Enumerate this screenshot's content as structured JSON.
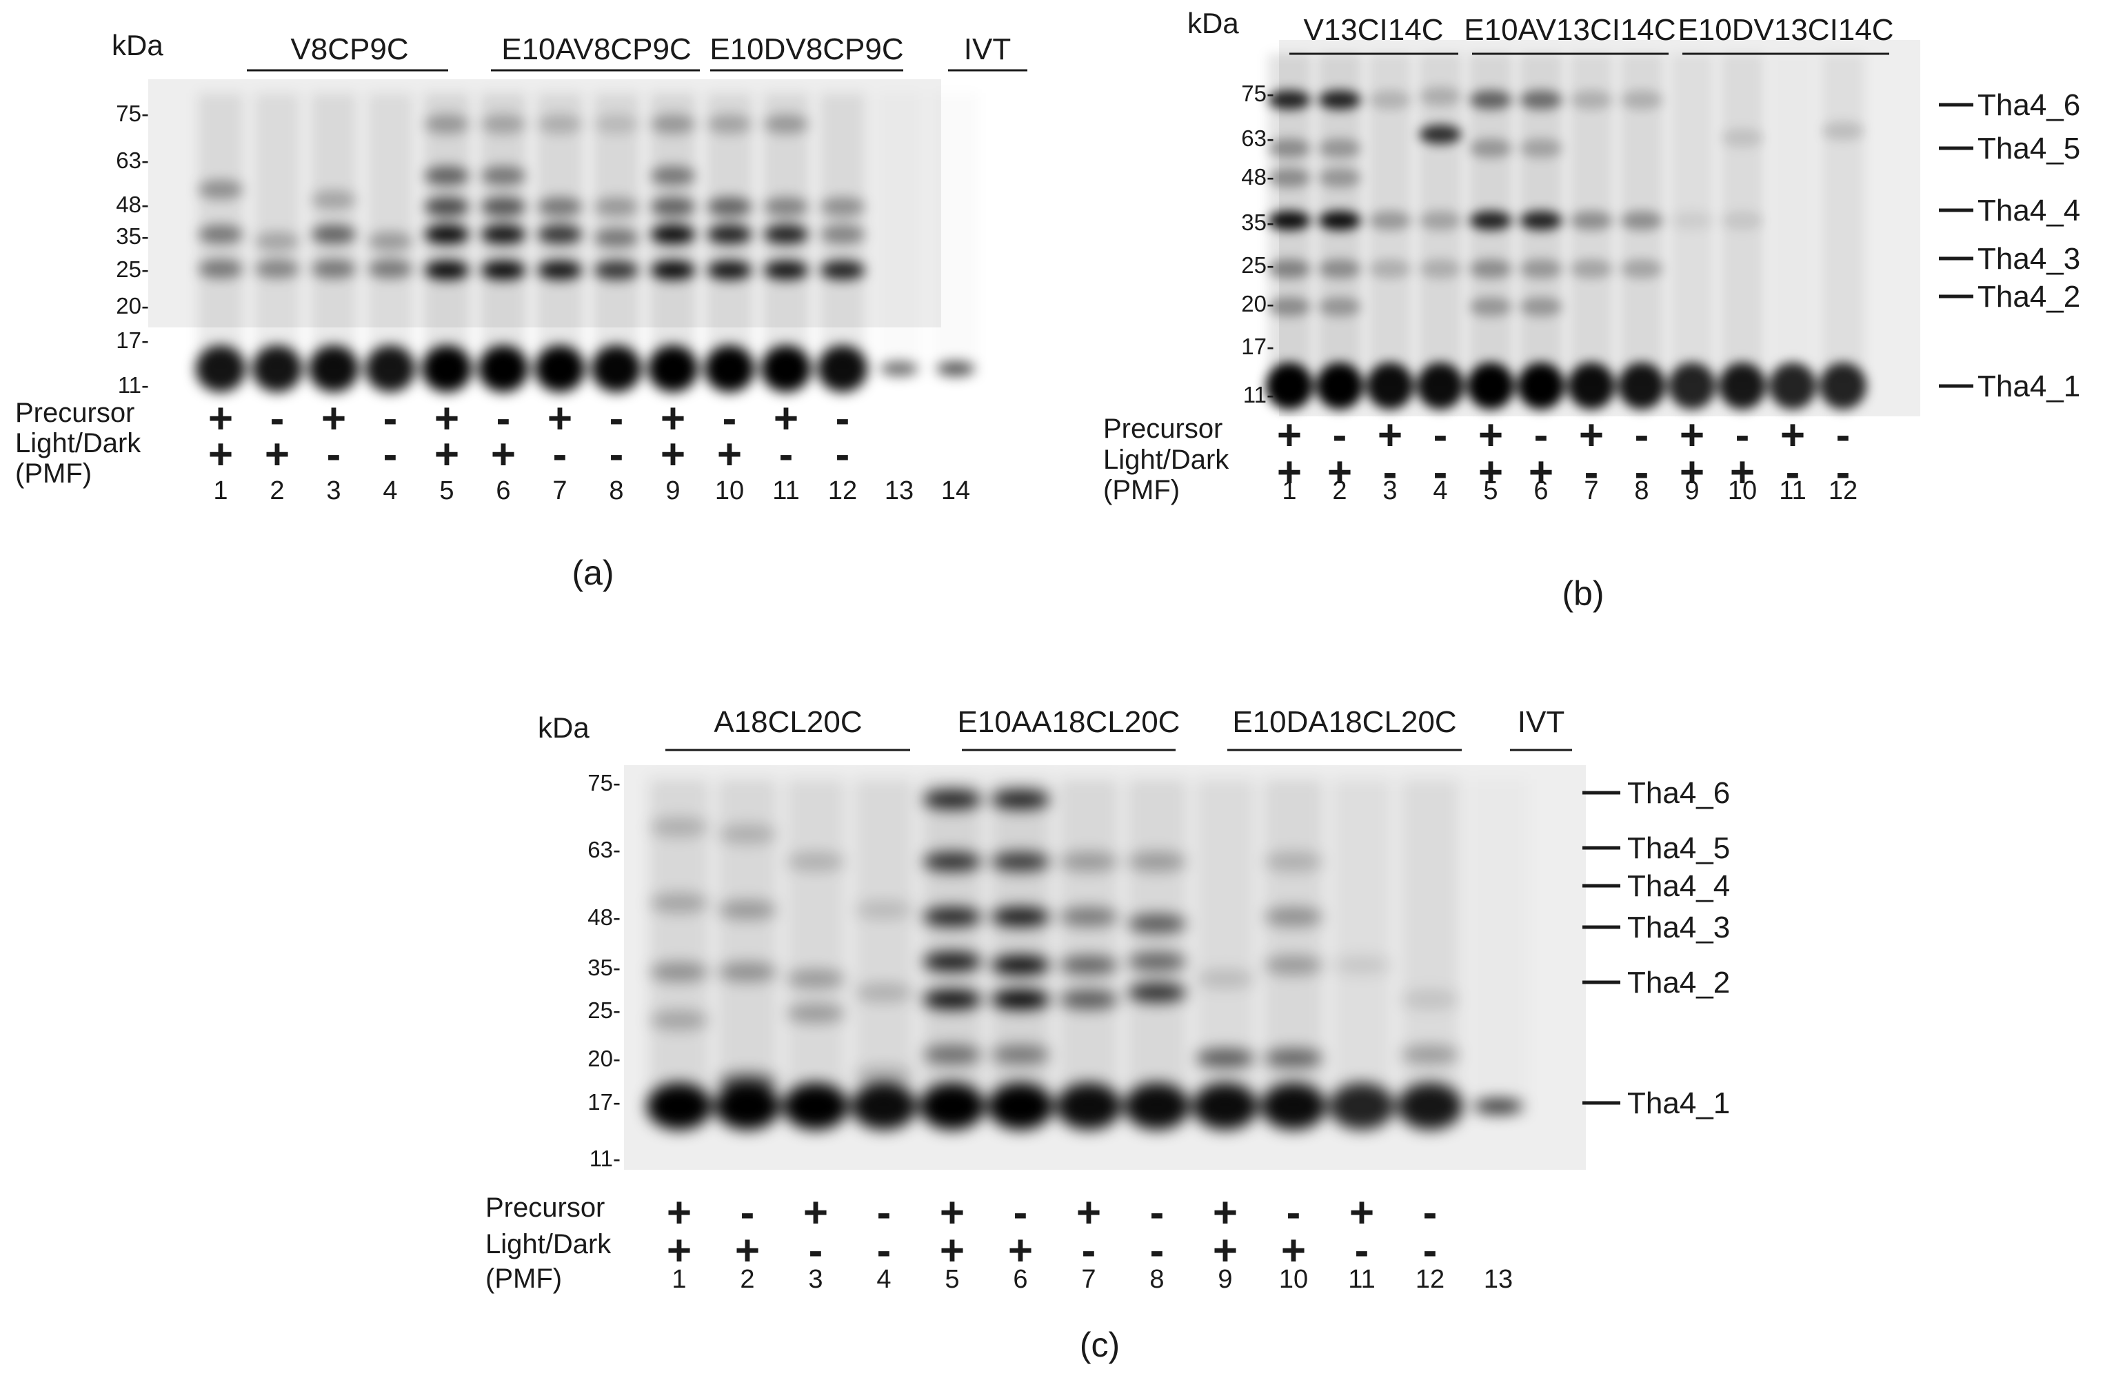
{
  "panels": [
    {
      "id": "a",
      "caption": "(a)",
      "kda_label": "kDa",
      "markers": [
        "75",
        "63",
        "48",
        "35",
        "25",
        "20",
        "17",
        "11"
      ],
      "groups": [
        "V8CP9C",
        "E10AV8CP9C",
        "E10DV8CP9C",
        "IVT"
      ],
      "row_labels": [
        "Precursor",
        "Light/Dark",
        "(PMF)"
      ],
      "precursor": [
        "+",
        "-",
        "+",
        "-",
        "+",
        "-",
        "+",
        "-",
        "+",
        "-",
        "+",
        "-"
      ],
      "light": [
        "+",
        "+",
        "-",
        "-",
        "+",
        "+",
        "-",
        "-",
        "+",
        "+",
        "-",
        "-"
      ],
      "lanes": [
        "1",
        "2",
        "3",
        "4",
        "5",
        "6",
        "7",
        "8",
        "9",
        "10",
        "11",
        "12",
        "13",
        "14"
      ],
      "bands": []
    },
    {
      "id": "b",
      "caption": "(b)",
      "kda_label": "kDa",
      "markers": [
        "75",
        "63",
        "48",
        "35",
        "25",
        "20",
        "17",
        "11"
      ],
      "groups": [
        "V13CI14C",
        "E10AV13CI14C",
        "E10DV13CI14C"
      ],
      "row_labels": [
        "Precursor",
        "Light/Dark",
        "(PMF)"
      ],
      "precursor": [
        "+",
        "-",
        "+",
        "-",
        "+",
        "-",
        "+",
        "-",
        "+",
        "-",
        "+",
        "-"
      ],
      "light": [
        "+",
        "+",
        "-",
        "-",
        "+",
        "+",
        "-",
        "-",
        "+",
        "+",
        "-",
        "-"
      ],
      "lanes": [
        "1",
        "2",
        "3",
        "4",
        "5",
        "6",
        "7",
        "8",
        "9",
        "10",
        "11",
        "12"
      ],
      "bands": [
        "Tha4_6",
        "Tha4_5",
        "Tha4_4",
        "Tha4_3",
        "Tha4_2",
        "Tha4_1"
      ]
    },
    {
      "id": "c",
      "caption": "(c)",
      "kda_label": "kDa",
      "markers": [
        "75",
        "63",
        "48",
        "35",
        "25",
        "20",
        "17",
        "11"
      ],
      "groups": [
        "A18CL20C",
        "E10AA18CL20C",
        "E10DA18CL20C",
        "IVT"
      ],
      "row_labels": [
        "Precursor",
        "Light/Dark",
        "(PMF)"
      ],
      "precursor": [
        "+",
        "-",
        "+",
        "-",
        "+",
        "-",
        "+",
        "-",
        "+",
        "-",
        "+",
        "-"
      ],
      "light": [
        "+",
        "+",
        "-",
        "-",
        "+",
        "+",
        "-",
        "-",
        "+",
        "+",
        "-",
        "-"
      ],
      "lanes": [
        "1",
        "2",
        "3",
        "4",
        "5",
        "6",
        "7",
        "8",
        "9",
        "10",
        "11",
        "12",
        "13"
      ],
      "bands": [
        "Tha4_6",
        "Tha4_5",
        "Tha4_4",
        "Tha4_3",
        "Tha4_2",
        "Tha4_1"
      ]
    }
  ]
}
